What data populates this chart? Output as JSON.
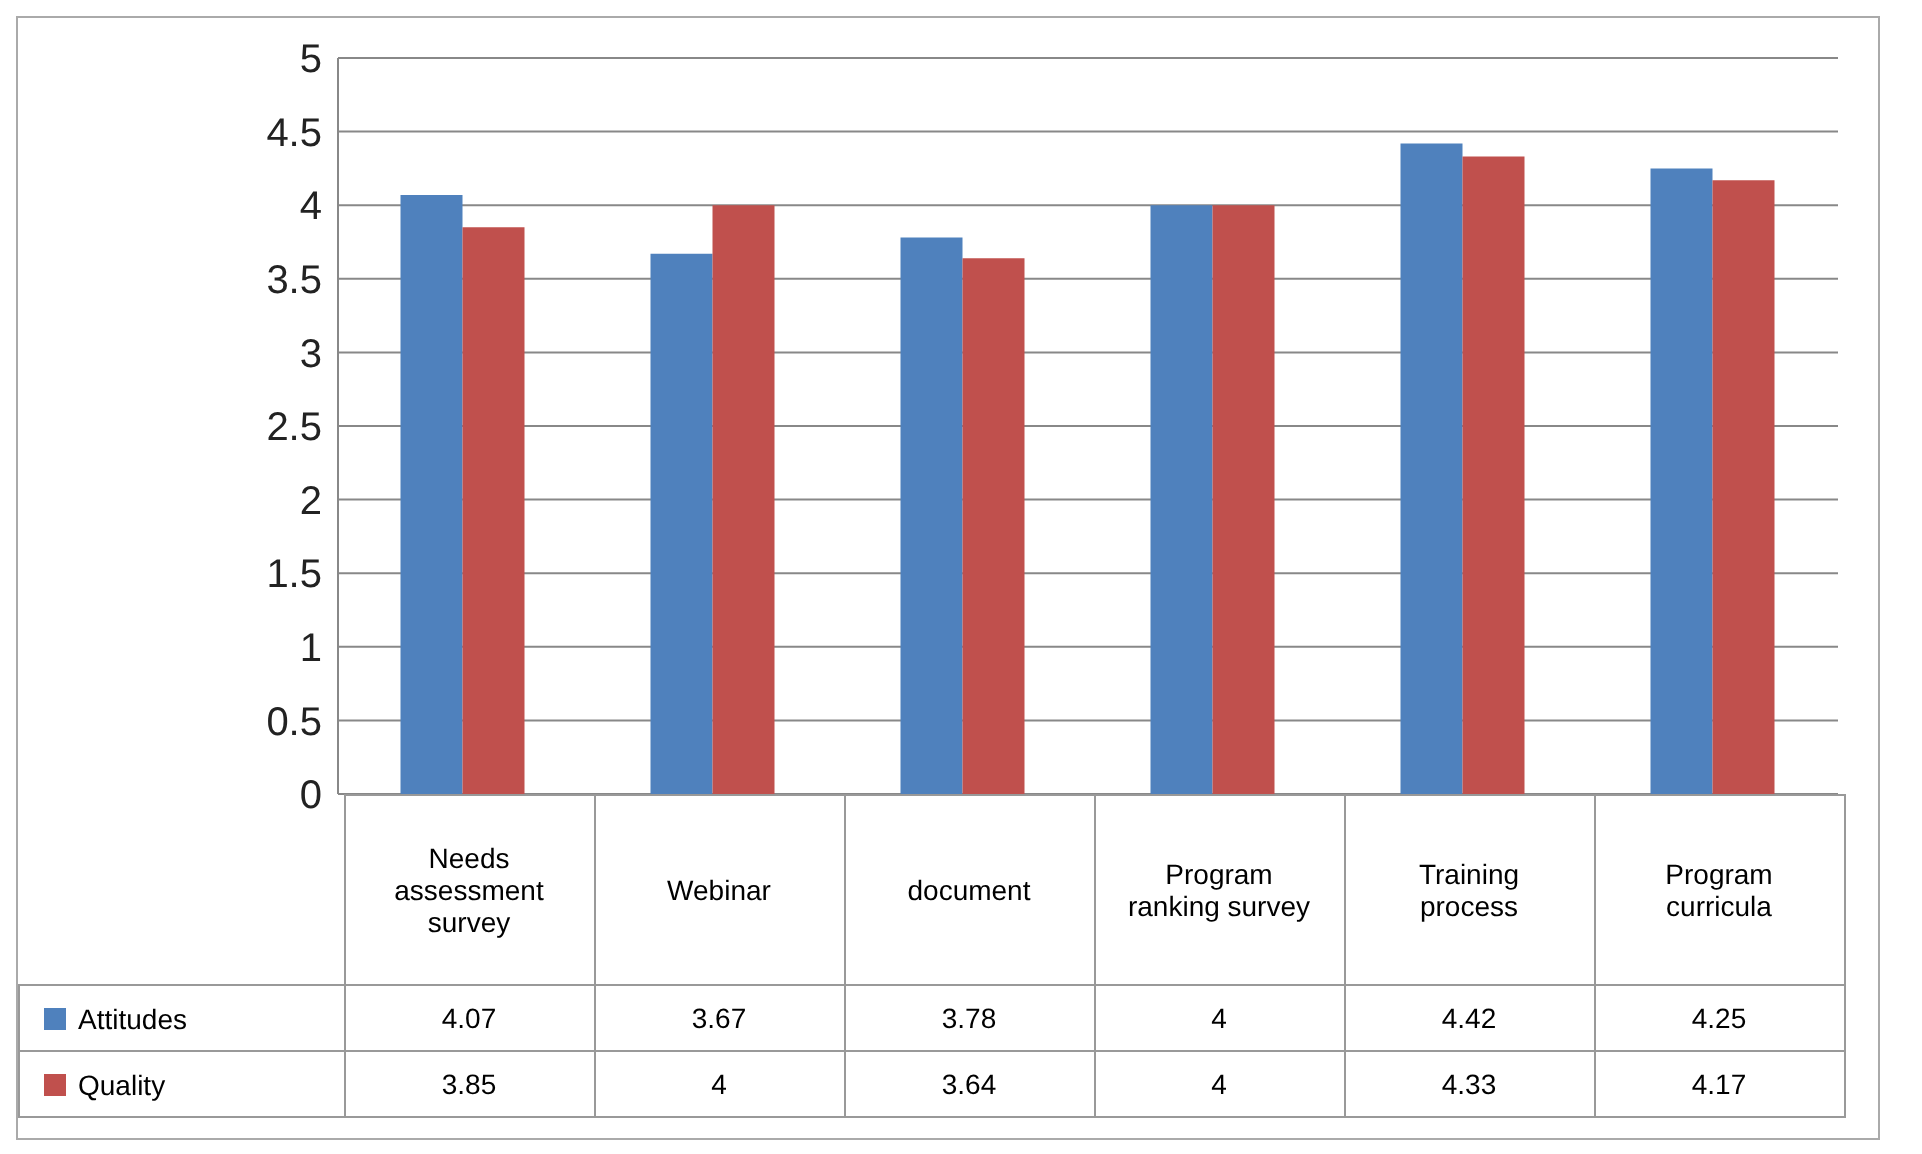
{
  "chart_data": {
    "type": "bar",
    "categories": [
      "Needs assessment survey",
      "Webinar",
      "document",
      "Program ranking survey",
      "Training process",
      "Program curricula"
    ],
    "series": [
      {
        "name": "Attitudes",
        "color": "#4f81bd",
        "values": [
          4.07,
          3.67,
          3.78,
          4,
          4.42,
          4.25
        ]
      },
      {
        "name": "Quality",
        "color": "#c0504d",
        "values": [
          3.85,
          4,
          3.64,
          4,
          4.33,
          4.17
        ]
      }
    ],
    "ylim": [
      0,
      5
    ],
    "yticks": [
      0,
      0.5,
      1,
      1.5,
      2,
      2.5,
      3,
      3.5,
      4,
      4.5,
      5
    ],
    "grid": "y",
    "legend": "bottom left",
    "data_labels": true
  }
}
